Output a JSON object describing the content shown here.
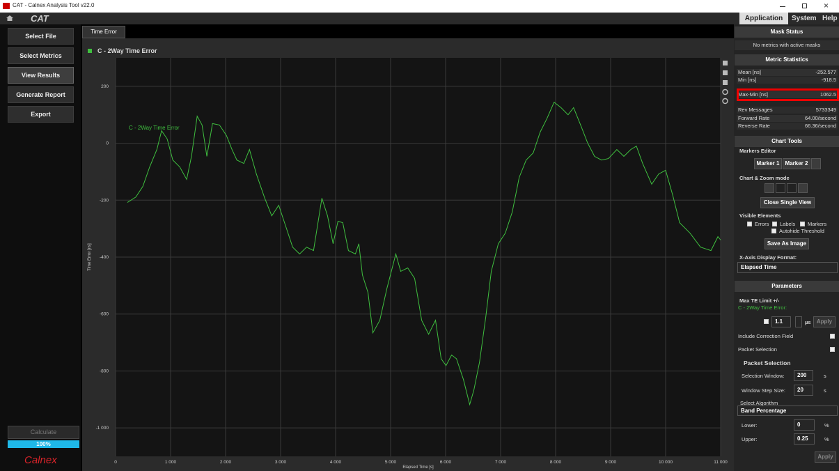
{
  "window": {
    "title": "CAT - Calnex Analysis Tool v22.0"
  },
  "topbar": {
    "logo": "CAT",
    "menu": [
      "Application",
      "System",
      "Help"
    ]
  },
  "sidebar": {
    "buttons": [
      "Select File",
      "Select Metrics",
      "View Results",
      "Generate Report",
      "Export"
    ],
    "calculate": "Calculate",
    "progress": "100%",
    "brand": "Calnex"
  },
  "tab": "Time Error",
  "chart_data": {
    "type": "line",
    "title": "C - 2Way Time Error",
    "x_label": "Elapsed Time [s]",
    "y_label": "Time Error [ns]",
    "xlim": [
      0,
      11000
    ],
    "ylim": [
      -1100,
      300
    ],
    "xticks": [
      0,
      {
        "value": 1000,
        "label": "1 000"
      },
      {
        "value": 2000,
        "label": "2 000"
      },
      {
        "value": 3000,
        "label": "3 000"
      },
      {
        "value": 4000,
        "label": "4 000"
      },
      {
        "value": 5000,
        "label": "5 000"
      },
      {
        "value": 6000,
        "label": "6 000"
      },
      {
        "value": 7000,
        "label": "7 000"
      },
      {
        "value": 8000,
        "label": "8 000"
      },
      {
        "value": 9000,
        "label": "9 000"
      },
      {
        "value": 10000,
        "label": "10 000"
      },
      {
        "value": 11000,
        "label": "11 000"
      }
    ],
    "yticks": [
      200,
      0,
      -200,
      -400,
      -600,
      -800,
      {
        "value": -1000,
        "label": "-1 000"
      }
    ],
    "grid": true,
    "x": [
      215,
      368,
      495,
      620,
      750,
      837,
      938,
      1040,
      1166,
      1293,
      1380,
      1483,
      1572,
      1660,
      1762,
      1888,
      2015,
      2117,
      2205,
      2332,
      2434,
      2560,
      2712,
      2839,
      2966,
      3092,
      3219,
      3346,
      3472,
      3599,
      3751,
      3853,
      3954,
      4043,
      4131,
      4233,
      4360,
      4423,
      4487,
      4588,
      4677,
      4804,
      4930,
      5095,
      5184,
      5311,
      5437,
      5564,
      5691,
      5817,
      5919,
      6008,
      6109,
      6198,
      6324,
      6438,
      6514,
      6616,
      6730,
      6831,
      6958,
      7085,
      7212,
      7338,
      7465,
      7592,
      7719,
      7845,
      7972,
      8099,
      8226,
      8327,
      8454,
      8580,
      8707,
      8834,
      8960,
      9113,
      9240,
      9366,
      9468,
      9582,
      9747,
      9873,
      10000,
      10127,
      10254,
      10444,
      10634,
      10824,
      10951,
      11000
    ],
    "series": [
      {
        "name": "C - 2Way Time Error",
        "color": "#3fbf3f",
        "values": [
          -208,
          -189,
          -152,
          -83,
          -22,
          44,
          15,
          -59,
          -83,
          -127,
          -46,
          95,
          64,
          -46,
          69,
          64,
          27,
          -22,
          -59,
          -71,
          -22,
          -108,
          -193,
          -255,
          -218,
          -291,
          -365,
          -389,
          -365,
          -377,
          -193,
          -255,
          -353,
          -274,
          -279,
          -377,
          -389,
          -353,
          -463,
          -524,
          -666,
          -622,
          -512,
          -389,
          -450,
          -438,
          -475,
          -622,
          -671,
          -622,
          -757,
          -781,
          -744,
          -757,
          -830,
          -918,
          -867,
          -769,
          -610,
          -450,
          -353,
          -316,
          -242,
          -120,
          -59,
          -34,
          39,
          88,
          144,
          125,
          100,
          125,
          64,
          2,
          -46,
          -59,
          -54,
          -22,
          -46,
          -22,
          -10,
          -71,
          -144,
          -108,
          -95,
          -181,
          -279,
          -316,
          -365,
          -377,
          -328,
          -340
        ]
      }
    ]
  },
  "panel": {
    "mask_status": {
      "title": "Mask Status",
      "message": "No metrics with active masks"
    },
    "metric_statistics": {
      "title": "Metric Statistics",
      "rows": [
        [
          "Mean [ns]",
          "-252.577"
        ],
        [
          "Min [ns]",
          "-918.5"
        ],
        [
          "Max-Min [ns]",
          "1062.5"
        ],
        [
          "Rev Messages",
          "5733349"
        ],
        [
          "Forward Rate",
          "64.00/second"
        ],
        [
          "Reverse Rate",
          "66.36/second"
        ]
      ]
    },
    "chart_tools": {
      "title": "Chart Tools",
      "markers_editor": "Markers Editor",
      "markers": [
        "Marker 1",
        "Marker 2"
      ],
      "zoom_mode": "Chart & Zoom mode",
      "close_single_view": "Close Single View",
      "visible_elements": "Visible Elements",
      "checks": [
        "Errors",
        "Labels",
        "Markers"
      ],
      "autohide": "Autohide Threshold",
      "save_image": "Save As Image",
      "x_axis_format": "X-Axis Display Format:",
      "x_axis_value": "Elapsed Time"
    },
    "parameters": {
      "title": "Parameters",
      "max_te": "Max TE Limit +/-",
      "metric": "C - 2Way Time Error:",
      "limit": "1.1",
      "unit": "µs",
      "apply": "Apply",
      "correction": "Include Correction Field",
      "packet_selection": "Packet Selection",
      "group": {
        "title": "Packet Selection",
        "window_label": "Selection Window:",
        "window": "200",
        "window_unit": "s",
        "step_label": "Window Step Size:",
        "step": "20",
        "step_unit": "s",
        "algorithm_label": "Select Algorithm",
        "algorithm": "Band Percentage",
        "lower_label": "Lower:",
        "lower": "0",
        "lower_unit": "%",
        "upper_label": "Upper:",
        "upper": "0.25",
        "upper_unit": "%",
        "apply": "Apply"
      }
    }
  }
}
